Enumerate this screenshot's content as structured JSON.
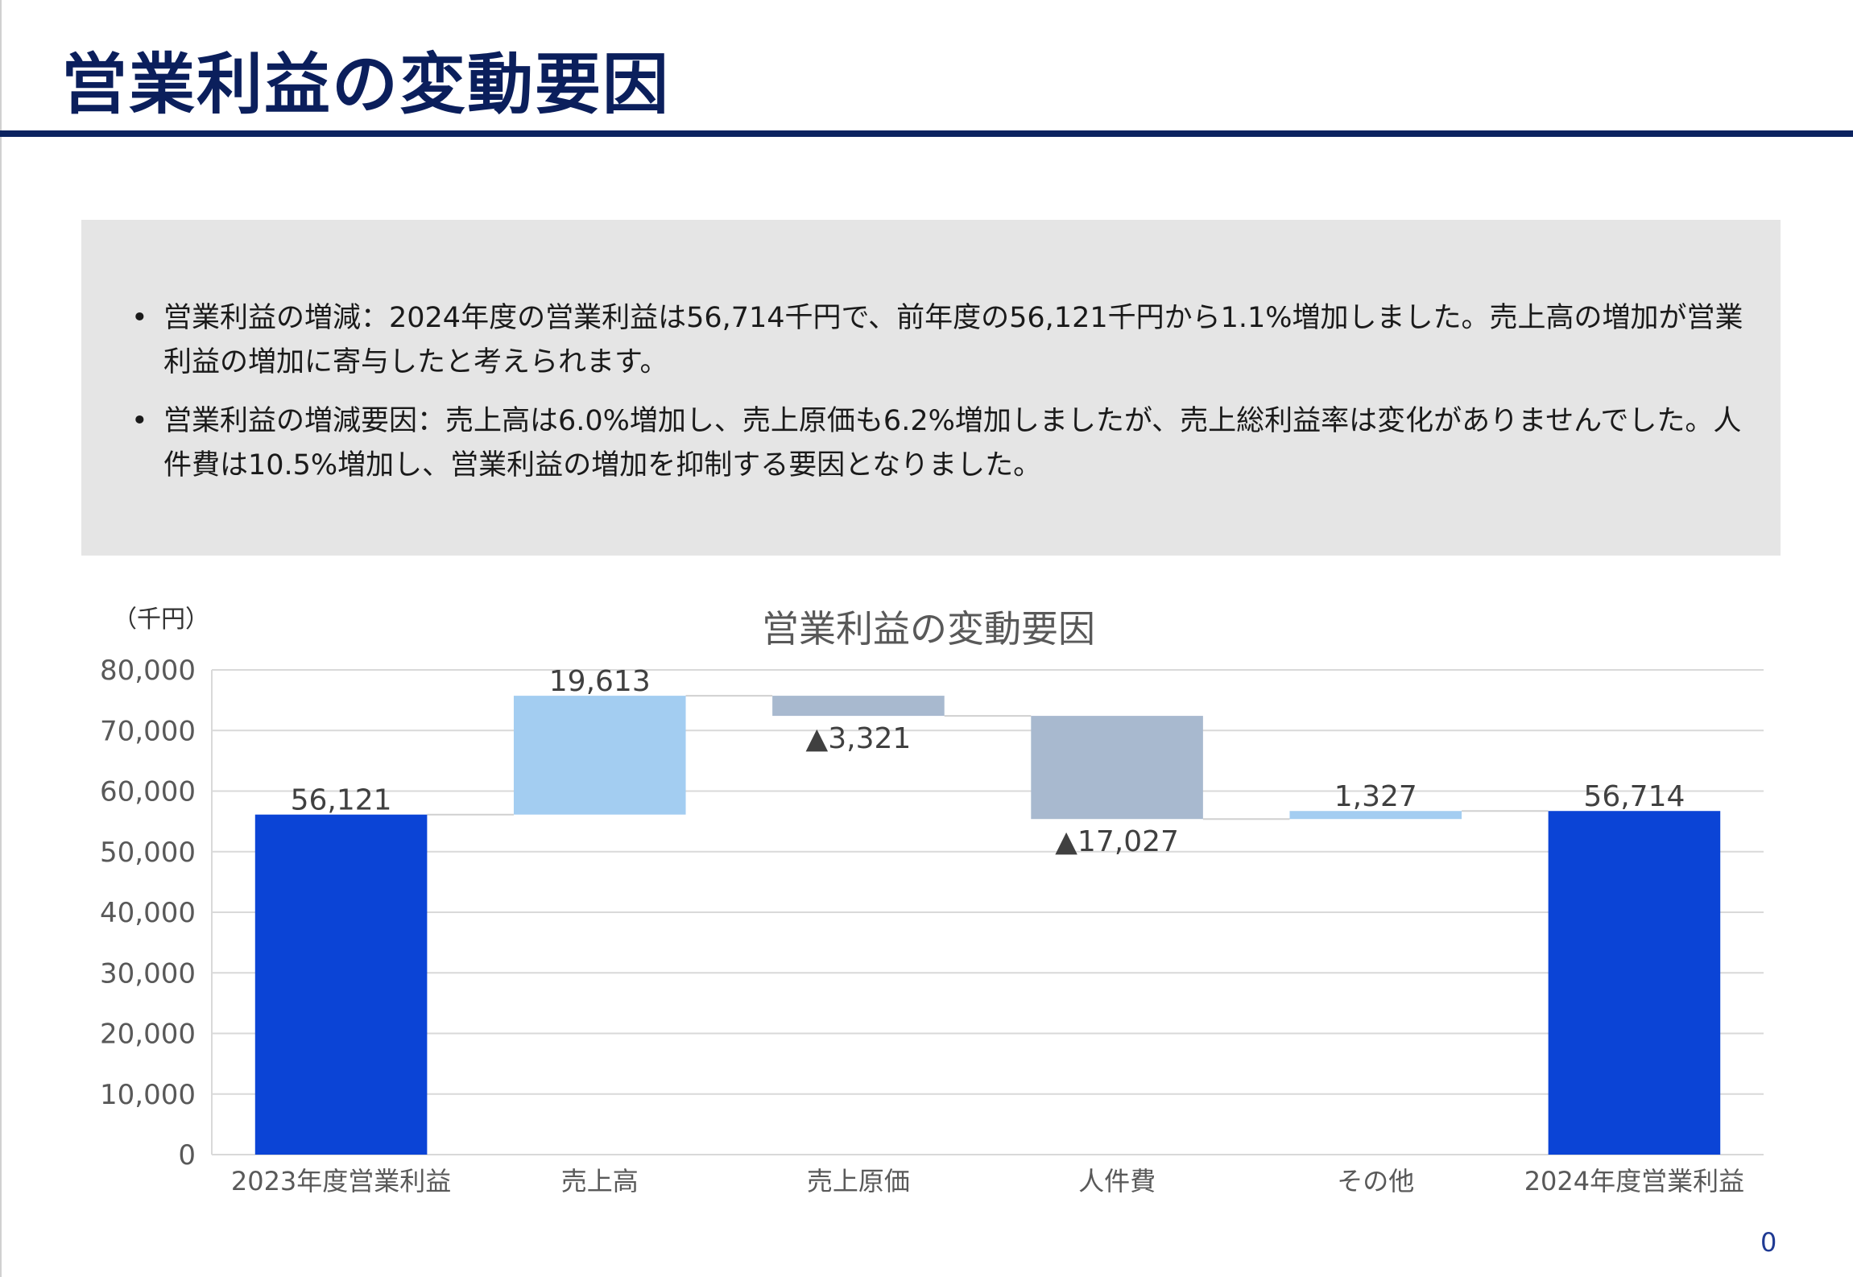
{
  "page": {
    "title": "営業利益の変動要因",
    "page_number": "0"
  },
  "summary": {
    "bullets": [
      "営業利益の増減：2024年度の営業利益は56,714千円で、前年度の56,121千円から1.1%増加しました。売上高の増加が営業利益の増加に寄与したと考えられます。",
      "営業利益の増減要因：売上高は6.0%増加し、売上原価も6.2%増加しましたが、売上総利益率は変化がありませんでした。人件費は10.5%増加し、営業利益の増加を抑制する要因となりました。"
    ]
  },
  "chart_data": {
    "type": "bar",
    "subtype": "waterfall",
    "title": "営業利益の変動要因",
    "unit_label": "（千円）",
    "categories": [
      "2023年度営業利益",
      "売上高",
      "売上原価",
      "人件費",
      "その他",
      "2024年度営業利益"
    ],
    "values": [
      56121,
      19613,
      -3321,
      -17027,
      1327,
      56714
    ],
    "kinds": [
      "total",
      "increase",
      "decrease",
      "decrease",
      "increase",
      "total"
    ],
    "data_labels": [
      "56,121",
      "19,613",
      "▲3,321",
      "▲17,027",
      "1,327",
      "56,714"
    ],
    "ylim": [
      0,
      80000
    ],
    "yticks": [
      0,
      10000,
      20000,
      30000,
      40000,
      50000,
      60000,
      70000,
      80000
    ],
    "ytick_labels": [
      "0",
      "10,000",
      "20,000",
      "30,000",
      "40,000",
      "50,000",
      "60,000",
      "70,000",
      "80,000"
    ],
    "grid": true,
    "legend": "none",
    "colors": {
      "total": "#0b44d6",
      "increase": "#a3cdf1",
      "decrease": "#a8b9cf",
      "grid": "#d9d9d9",
      "connector": "#d0d0d0"
    }
  }
}
